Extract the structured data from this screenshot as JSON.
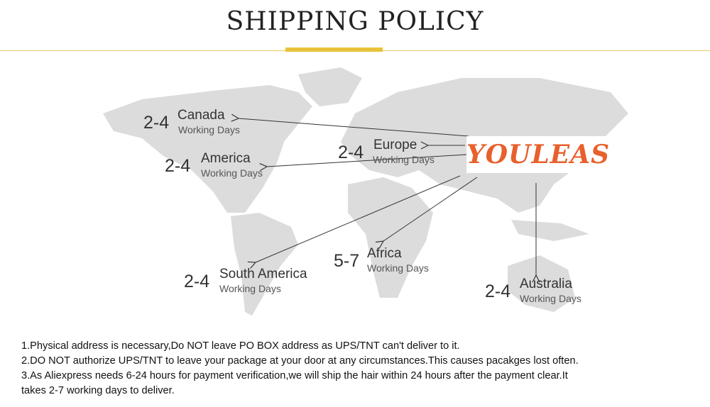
{
  "title": "SHIPPING POLICY",
  "brand": "YOULEAS",
  "accent_color": "#e9c23b",
  "brand_color": "#e8602c",
  "destinations": [
    {
      "days": "2-4",
      "name": "Canada",
      "sub": "Working Days"
    },
    {
      "days": "2-4",
      "name": "Europe",
      "sub": "Working Days"
    },
    {
      "days": "2-4",
      "name": "America",
      "sub": "Working Days"
    },
    {
      "days": "5-7",
      "name": "Africa",
      "sub": "Working Days"
    },
    {
      "days": "2-4",
      "name": "South America",
      "sub": "Working Days"
    },
    {
      "days": "2-4",
      "name": "Australia",
      "sub": "Working Days"
    }
  ],
  "notes": [
    "1.Physical address is necessary,Do NOT leave PO BOX address as UPS/TNT can't deliver to it.",
    "2.DO NOT authorize UPS/TNT to leave your package at your door at any circumstances.This causes pacakges lost often.",
    "3.As Aliexpress needs 6-24 hours for payment verification,we will ship the hair within 24 hours after the payment clear.It",
    "takes 2-7 working days to deliver."
  ]
}
